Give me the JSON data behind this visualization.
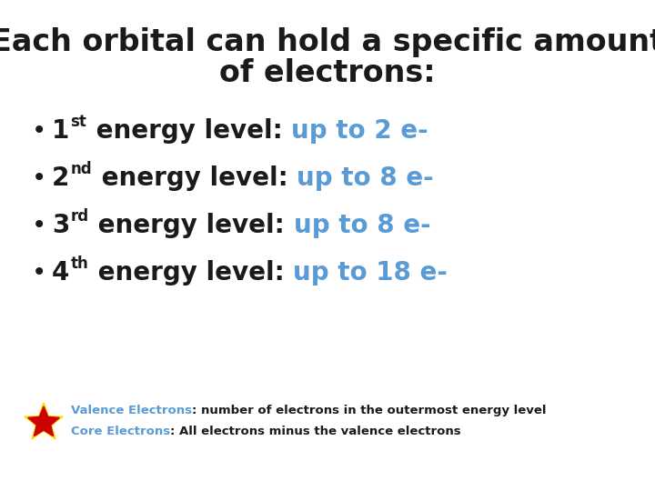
{
  "title_line1": "Each orbital can hold a specific amount",
  "title_line2": "of electrons:",
  "background_color": "#ffffff",
  "title_color": "#1a1a1a",
  "bullet_black_color": "#1a1a1a",
  "bullet_blue_color": "#5b9bd5",
  "title_fontsize": 24,
  "bullet_fontsize": 20,
  "note_fontsize": 9.5,
  "bullets": [
    {
      "num": "1",
      "sup": "st",
      "black": " energy level: ",
      "blue": "up to 2 e-"
    },
    {
      "num": "2",
      "sup": "nd",
      "black": " energy level: ",
      "blue": "up to 8 e-"
    },
    {
      "num": "3",
      "sup": "rd",
      "black": " energy level: ",
      "blue": "up to 8 e-"
    },
    {
      "num": "4",
      "sup": "th",
      "black": " energy level: ",
      "blue": "up to 18 e-"
    }
  ],
  "note_blue": "#5b9bd5",
  "note_black": "#1a1a1a",
  "note_line1_blue": "Valence Electrons",
  "note_line1_rest": ": number of electrons in the outermost energy level",
  "note_line2_blue": "Core Electrons",
  "note_line2_rest": ": All electrons minus the valence electrons",
  "star_outer_color": "#ffd700",
  "star_inner_color": "#cc0000"
}
